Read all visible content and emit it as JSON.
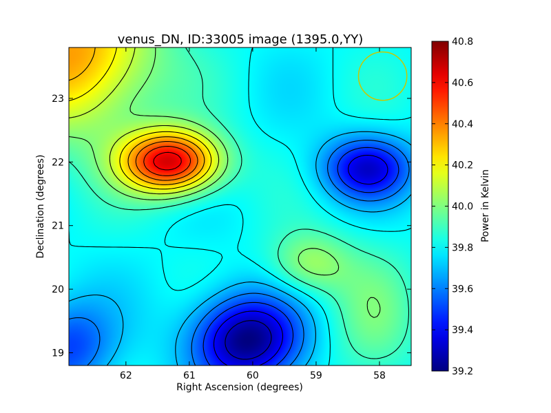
{
  "chart_data": {
    "type": "heatmap",
    "title": "venus_DN, ID:33005 image (1395.0,YY)",
    "xlabel": "Right Ascension (degrees)",
    "ylabel": "Declination (degrees)",
    "xlim": [
      62.9,
      57.5
    ],
    "ylim": [
      18.8,
      23.8
    ],
    "x_ticks": [
      62,
      61,
      60,
      59,
      58
    ],
    "y_ticks": [
      19,
      20,
      21,
      22,
      23
    ],
    "colorbar": {
      "label": "Power in Kelvin",
      "min": 39.2,
      "max": 40.8,
      "ticks": [
        39.2,
        39.4,
        39.6,
        39.8,
        40.0,
        40.2,
        40.4,
        40.6,
        40.8
      ],
      "tick_labels": [
        "39.2",
        "39.4",
        "39.6",
        "39.8",
        "40.0",
        "40.2",
        "40.4",
        "40.6",
        "40.8"
      ],
      "colormap": "jet"
    },
    "field_components": [
      {
        "ra": 61.3,
        "dec": 22.0,
        "power": 0.85,
        "sigma_ra": 0.55,
        "sigma_dec": 0.35
      },
      {
        "ra": 62.8,
        "dec": 23.7,
        "power": 0.55,
        "sigma_ra": 0.9,
        "sigma_dec": 0.9
      },
      {
        "ra": 59.1,
        "dec": 20.4,
        "power": 0.25,
        "sigma_ra": 0.45,
        "sigma_dec": 0.35
      },
      {
        "ra": 60.1,
        "dec": 19.2,
        "power": -0.6,
        "sigma_ra": 0.6,
        "sigma_dec": 0.5
      },
      {
        "ra": 58.2,
        "dec": 21.9,
        "power": -0.45,
        "sigma_ra": 0.5,
        "sigma_dec": 0.35
      },
      {
        "ra": 62.9,
        "dec": 19.1,
        "power": -0.3,
        "sigma_ra": 0.5,
        "sigma_dec": 0.5
      },
      {
        "ra": 58.1,
        "dec": 19.5,
        "power": 0.15,
        "sigma_ra": 0.5,
        "sigma_dec": 0.8
      }
    ],
    "field_baseline": 39.8,
    "beam_circle": {
      "ra": 57.95,
      "dec": 23.35,
      "radius_deg": 0.38,
      "color": "#c8c800"
    }
  }
}
